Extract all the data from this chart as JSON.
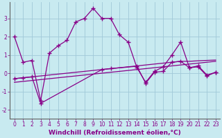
{
  "title": "",
  "xlabel": "Windchill (Refroidissement éolien,°C)",
  "background_color": "#c8eaf0",
  "grid_color": "#a0c8d8",
  "line_color": "#880088",
  "marker": "+",
  "xlim": [
    -0.5,
    23.5
  ],
  "ylim": [
    -2.5,
    3.9
  ],
  "yticks": [
    -2,
    -1,
    0,
    1,
    2,
    3
  ],
  "xticks": [
    0,
    1,
    2,
    3,
    4,
    5,
    6,
    7,
    8,
    9,
    10,
    11,
    12,
    13,
    14,
    15,
    16,
    17,
    18,
    19,
    20,
    21,
    22,
    23
  ],
  "series1_x": [
    0,
    1,
    2,
    3,
    4,
    5,
    6,
    7,
    8,
    9,
    10,
    11,
    12,
    13,
    14,
    15,
    16,
    17,
    18,
    19,
    20,
    21,
    22,
    23
  ],
  "series1_y": [
    2.0,
    0.6,
    0.7,
    -1.5,
    1.1,
    1.5,
    1.8,
    2.8,
    3.0,
    3.55,
    3.0,
    3.0,
    2.1,
    1.7,
    0.3,
    -0.5,
    0.1,
    0.35,
    1.0,
    1.7,
    0.3,
    0.4,
    -0.1,
    0.05
  ],
  "series2_x": [
    0,
    1,
    2,
    3,
    4,
    5,
    6,
    7,
    8,
    9,
    10,
    11,
    12,
    13,
    14,
    15,
    16,
    17,
    18,
    19,
    20,
    21,
    22,
    23
  ],
  "series2_y": [
    -0.3,
    -0.25,
    -0.2,
    -0.15,
    -0.1,
    -0.05,
    0.0,
    0.05,
    0.1,
    0.15,
    0.2,
    0.25,
    0.3,
    0.35,
    0.4,
    0.45,
    0.5,
    0.55,
    0.6,
    0.65,
    0.65,
    0.68,
    0.7,
    0.72
  ],
  "series3_x": [
    0,
    1,
    2,
    3,
    4,
    5,
    6,
    7,
    8,
    9,
    10,
    11,
    12,
    13,
    14,
    15,
    16,
    17,
    18,
    19,
    20,
    21,
    22,
    23
  ],
  "series3_y": [
    -0.5,
    -0.45,
    -0.4,
    -0.35,
    -0.3,
    -0.25,
    -0.2,
    -0.15,
    -0.1,
    -0.05,
    0.0,
    0.05,
    0.1,
    0.15,
    0.2,
    0.25,
    0.3,
    0.35,
    0.4,
    0.45,
    0.5,
    0.55,
    0.6,
    0.65
  ],
  "series4_x": [
    0,
    1,
    2,
    3,
    10,
    11,
    14,
    15,
    16,
    17,
    18,
    19,
    20,
    21,
    22,
    23
  ],
  "series4_y": [
    -0.3,
    -0.25,
    -0.2,
    -1.65,
    0.2,
    0.25,
    0.38,
    -0.55,
    0.05,
    0.1,
    0.6,
    0.65,
    0.3,
    0.35,
    -0.15,
    0.05
  ],
  "tick_fontsize": 5.5,
  "label_fontsize": 6.5
}
